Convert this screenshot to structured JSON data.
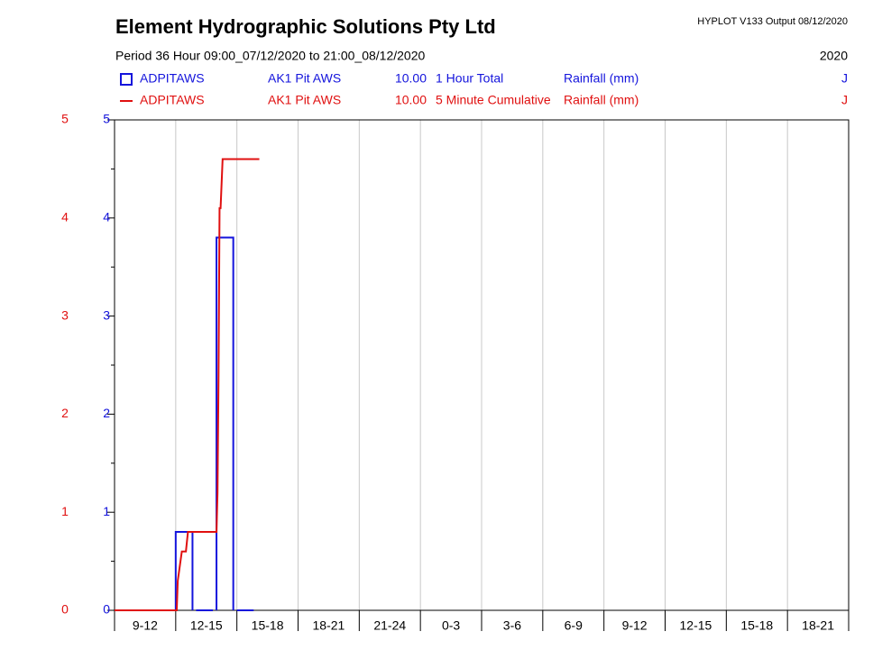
{
  "chart_data": {
    "type": "step",
    "title": "Element Hydrographic Solutions Pty Ltd",
    "subtitle": "HYPLOT V133  Output 08/12/2020",
    "period": "Period  36 Hour   09:00_07/12/2020 to 21:00_08/12/2020",
    "year": "2020",
    "categories": [
      "9-12",
      "12-15",
      "15-18",
      "18-21",
      "21-24",
      "0-3",
      "3-6",
      "6-9",
      "9-12",
      "12-15",
      "15-18",
      "18-21"
    ],
    "xlim": [
      0,
      36
    ],
    "ylim": [
      0,
      5
    ],
    "yticks": [
      0,
      1,
      2,
      3,
      4,
      5
    ],
    "y2lim": [
      0,
      5
    ],
    "y2ticks": [
      0,
      1,
      2,
      3,
      4,
      5
    ],
    "grid": true,
    "series": [
      {
        "name": "ADPITAWS",
        "station": "AK1 Pit AWS",
        "code": "10.00",
        "description": "1 Hour Total",
        "units": "Rainfall (mm)",
        "flag": "J",
        "color": "#1414dc",
        "marker": "box",
        "axis": "y",
        "x": [
          0,
          1,
          2,
          3,
          4,
          5,
          6
        ],
        "values": [
          0,
          0,
          0,
          0.8,
          0,
          3.8,
          0
        ]
      },
      {
        "name": "ADPITAWS",
        "station": "AK1 Pit AWS",
        "code": "10.00",
        "description": "5 Minute Cumulative",
        "units": "Rainfall (mm)",
        "flag": "J",
        "color": "#e01010",
        "marker": "line",
        "axis": "y2",
        "x": [
          0,
          3.05,
          3.1,
          3.3,
          3.5,
          3.6,
          5.0,
          5.05,
          5.1,
          5.15,
          5.2,
          5.3,
          7.1
        ],
        "values": [
          0,
          0,
          0.3,
          0.6,
          0.6,
          0.8,
          0.8,
          1.2,
          2.4,
          4.1,
          4.1,
          4.6,
          4.6
        ]
      }
    ]
  }
}
